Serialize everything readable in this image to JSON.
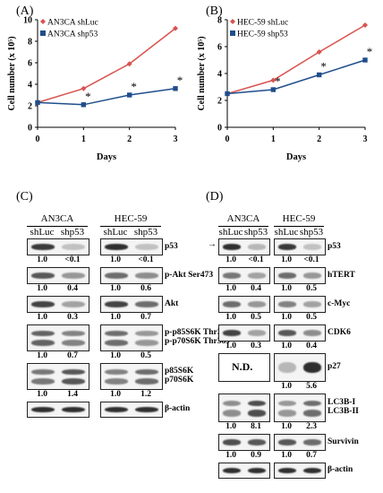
{
  "panels": {
    "A": "(A)",
    "B": "(B)",
    "C": "(C)",
    "D": "(D)"
  },
  "chart_data": [
    {
      "type": "line",
      "panel": "A",
      "x": [
        0,
        1,
        2,
        3
      ],
      "xlabel": "Days",
      "ylabel": "Cell number (x 10⁵)",
      "ylim": [
        0,
        10
      ],
      "yticks": [
        0,
        2,
        4,
        6,
        8,
        10
      ],
      "series": [
        {
          "name": "AN3CA shLuc",
          "values": [
            2.3,
            3.6,
            5.9,
            9.2
          ],
          "color": "#d9534f",
          "marker": "diamond"
        },
        {
          "name": "AN3CA shp53",
          "values": [
            2.3,
            2.1,
            3.0,
            3.6
          ],
          "color": "#1f4e8c",
          "marker": "square"
        }
      ],
      "significance": [
        "",
        "*",
        "*",
        "*"
      ],
      "legend_position": "top-left"
    },
    {
      "type": "line",
      "panel": "B",
      "x": [
        0,
        1,
        2,
        3
      ],
      "xlabel": "Days",
      "ylabel": "Cell number (x 10⁵)",
      "ylim": [
        0,
        8
      ],
      "yticks": [
        0,
        2,
        4,
        6,
        8
      ],
      "series": [
        {
          "name": "HEC-59 shLuc",
          "values": [
            2.5,
            3.5,
            5.6,
            7.6
          ],
          "color": "#d9534f",
          "marker": "diamond"
        },
        {
          "name": "HEC-59 shp53",
          "values": [
            2.5,
            2.8,
            3.9,
            5.0
          ],
          "color": "#1f4e8c",
          "marker": "square"
        }
      ],
      "significance": [
        "",
        "*",
        "*",
        "*"
      ],
      "legend_position": "top-left"
    }
  ],
  "blotC": {
    "cell_lines": [
      "AN3CA",
      "HEC-59"
    ],
    "lanes": [
      "shLuc",
      "shp53"
    ],
    "rows": [
      {
        "label": [
          "p53"
        ],
        "an3": [
          "1.0",
          "<0.1"
        ],
        "hec": [
          "1.0",
          "<0.1"
        ]
      },
      {
        "label": [
          "p-Akt Ser473"
        ],
        "an3": [
          "1.0",
          "0.4"
        ],
        "hec": [
          "1.0",
          "0.6"
        ]
      },
      {
        "label": [
          "Akt"
        ],
        "an3": [
          "1.0",
          "0.3"
        ],
        "hec": [
          "1.0",
          "0.7"
        ]
      },
      {
        "label": [
          "p-p85S6K Thr389",
          "p-p70S6K Thr389"
        ],
        "an3": [
          "1.0",
          "0.7"
        ],
        "hec": [
          "1.0",
          "0.5"
        ]
      },
      {
        "label": [
          "p85S6K",
          "p70S6K"
        ],
        "an3": [
          "1.0",
          "1.4"
        ],
        "hec": [
          "1.0",
          "1.2"
        ]
      },
      {
        "label": [
          "β-actin"
        ],
        "an3": [],
        "hec": []
      }
    ]
  },
  "blotD": {
    "cell_lines": [
      "AN3CA",
      "HEC-59"
    ],
    "lanes": [
      "shLuc",
      "shp53"
    ],
    "nd_text": "N.D.",
    "arrow": "→",
    "rows": [
      {
        "label": [
          "p53"
        ],
        "an3": [
          "1.0",
          "<0.1"
        ],
        "hec": [
          "1.0",
          "<0.1"
        ]
      },
      {
        "label": [
          "hTERT"
        ],
        "an3": [
          "1.0",
          "0.4"
        ],
        "hec": [
          "1.0",
          "0.5"
        ]
      },
      {
        "label": [
          "c-Myc"
        ],
        "an3": [
          "1.0",
          "0.5"
        ],
        "hec": [
          "1.0",
          "0.5"
        ]
      },
      {
        "label": [
          "CDK6"
        ],
        "an3": [
          "1.0",
          "0.3"
        ],
        "hec": [
          "1.0",
          "0.4"
        ]
      },
      {
        "label": [
          "p27"
        ],
        "an3": [],
        "hec": [
          "1.0",
          "5.6"
        ]
      },
      {
        "label": [
          "LC3B-I",
          "LC3B-II"
        ],
        "an3": [
          "1.0",
          "8.1"
        ],
        "hec": [
          "1.0",
          "2.3"
        ]
      },
      {
        "label": [
          "Survivin"
        ],
        "an3": [
          "1.0",
          "0.9"
        ],
        "hec": [
          "1.0",
          "0.7"
        ]
      },
      {
        "label": [
          "β-actin"
        ],
        "an3": [],
        "hec": []
      }
    ]
  }
}
